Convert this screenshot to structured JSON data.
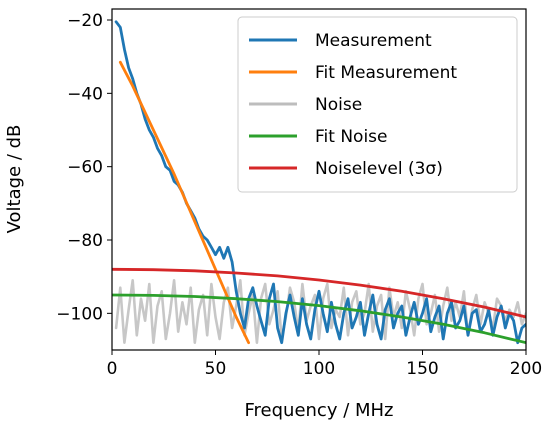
{
  "chart_data": {
    "type": "line",
    "title": "",
    "xlabel": "Frequency / MHz",
    "ylabel": "Voltage / dB",
    "xlim": [
      0,
      200
    ],
    "ylim": [
      -110,
      -17
    ],
    "x_ticks": [
      "0",
      "50",
      "100",
      "150",
      "200"
    ],
    "y_ticks": [
      "−20",
      "−40",
      "−60",
      "−80",
      "−100"
    ],
    "x_tick_values": [
      0,
      50,
      100,
      150,
      200
    ],
    "y_tick_values": [
      -20,
      -40,
      -60,
      -80,
      -100
    ],
    "grid": false,
    "legend_position": "top-right",
    "series": [
      {
        "name": "Measurement",
        "color": "#1f77b4",
        "x": [
          2,
          4,
          6,
          8,
          10,
          12,
          14,
          16,
          18,
          20,
          22,
          24,
          26,
          28,
          30,
          32,
          34,
          36,
          38,
          40,
          42,
          44,
          46,
          48,
          50,
          52,
          54,
          56,
          58,
          60,
          62,
          64,
          66,
          68,
          70,
          72,
          74,
          76,
          78,
          80,
          82,
          84,
          86,
          88,
          90,
          92,
          94,
          96,
          98,
          100,
          102,
          104,
          106,
          108,
          110,
          112,
          114,
          116,
          118,
          120,
          122,
          124,
          126,
          128,
          130,
          132,
          134,
          136,
          138,
          140,
          142,
          144,
          146,
          148,
          150,
          152,
          154,
          156,
          158,
          160,
          162,
          164,
          166,
          168,
          170,
          172,
          174,
          176,
          178,
          180,
          182,
          184,
          186,
          188,
          190,
          192,
          194,
          196,
          198,
          200
        ],
        "y": [
          -20.5,
          -22,
          -28,
          -33,
          -36,
          -40,
          -43,
          -47,
          -50,
          -52,
          -55,
          -57,
          -60,
          -61,
          -64,
          -65,
          -67,
          -70,
          -72,
          -74,
          -77,
          -79,
          -80,
          -82,
          -84,
          -82,
          -85,
          -82,
          -86,
          -94,
          -100,
          -104,
          -96,
          -93,
          -98,
          -102,
          -106,
          -96,
          -92,
          -104,
          -108,
          -100,
          -95,
          -101,
          -106,
          -96,
          -103,
          -107,
          -99,
          -94,
          -100,
          -105,
          -97,
          -103,
          -107,
          -100,
          -96,
          -104,
          -101,
          -97,
          -106,
          -100,
          -95,
          -103,
          -107,
          -99,
          -96,
          -104,
          -100,
          -98,
          -106,
          -101,
          -97,
          -103,
          -100,
          -96,
          -105,
          -101,
          -98,
          -107,
          -100,
          -97,
          -104,
          -102,
          -98,
          -106,
          -100,
          -99,
          -105,
          -103,
          -99,
          -106,
          -101,
          -98,
          -104,
          -100,
          -102,
          -108,
          -104,
          -103
        ]
      },
      {
        "name": "Fit Measurement",
        "color": "#ff7f0e",
        "x": [
          4,
          10,
          20,
          30,
          40,
          50,
          60,
          66
        ],
        "y": [
          -31.5,
          -38,
          -50,
          -62,
          -75,
          -88,
          -101,
          -108
        ]
      },
      {
        "name": "Noise",
        "color": "#bdbdbd",
        "x": [
          2,
          4,
          6,
          8,
          10,
          12,
          14,
          16,
          18,
          20,
          22,
          24,
          26,
          28,
          30,
          32,
          34,
          36,
          38,
          40,
          42,
          44,
          46,
          48,
          50,
          52,
          54,
          56,
          58,
          60,
          62,
          64,
          66,
          68,
          70,
          72,
          74,
          76,
          78,
          80,
          82,
          84,
          86,
          88,
          90,
          92,
          94,
          96,
          98,
          100,
          102,
          104,
          106,
          108,
          110,
          112,
          114,
          116,
          118,
          120,
          122,
          124,
          126,
          128,
          130,
          132,
          134,
          136,
          138,
          140,
          142,
          144,
          146,
          148,
          150,
          152,
          154,
          156,
          158,
          160,
          162,
          164,
          166,
          168,
          170,
          172,
          174,
          176,
          178,
          180,
          182,
          184,
          186,
          188,
          190,
          192,
          194,
          196,
          198,
          200
        ],
        "y": [
          -104,
          -93,
          -108,
          -99,
          -91,
          -106,
          -96,
          -102,
          -92,
          -108,
          -98,
          -94,
          -107,
          -100,
          -91,
          -105,
          -97,
          -103,
          -93,
          -108,
          -99,
          -95,
          -106,
          -92,
          -101,
          -107,
          -97,
          -93,
          -104,
          -98,
          -91,
          -106,
          -100,
          -95,
          -108,
          -96,
          -92,
          -103,
          -99,
          -94,
          -107,
          -101,
          -93,
          -97,
          -105,
          -92,
          -102,
          -98,
          -95,
          -107,
          -96,
          -92,
          -104,
          -99,
          -101,
          -93,
          -106,
          -97,
          -94,
          -103,
          -100,
          -92,
          -105,
          -98,
          -95,
          -107,
          -93,
          -101,
          -97,
          -104,
          -94,
          -99,
          -106,
          -96,
          -92,
          -103,
          -100,
          -95,
          -105,
          -98,
          -93,
          -102,
          -97,
          -101,
          -94,
          -106,
          -99,
          -95,
          -103,
          -97,
          -100,
          -104,
          -96,
          -98,
          -102,
          -99,
          -101,
          -97,
          -103,
          -100
        ]
      },
      {
        "name": "Fit Noise",
        "color": "#2ca02c",
        "x": [
          0,
          20,
          40,
          60,
          80,
          100,
          120,
          140,
          160,
          180,
          200
        ],
        "y": [
          -95,
          -95.1,
          -95.4,
          -96,
          -96.8,
          -97.9,
          -99.3,
          -101,
          -103,
          -105.3,
          -108
        ]
      },
      {
        "name": "Noiselevel (3σ)",
        "color": "#d62728",
        "x": [
          0,
          20,
          40,
          60,
          80,
          100,
          120,
          140,
          160,
          180,
          200
        ],
        "y": [
          -88,
          -88.1,
          -88.4,
          -89,
          -89.8,
          -90.9,
          -92.3,
          -94,
          -96,
          -98.3,
          -101
        ]
      }
    ]
  }
}
